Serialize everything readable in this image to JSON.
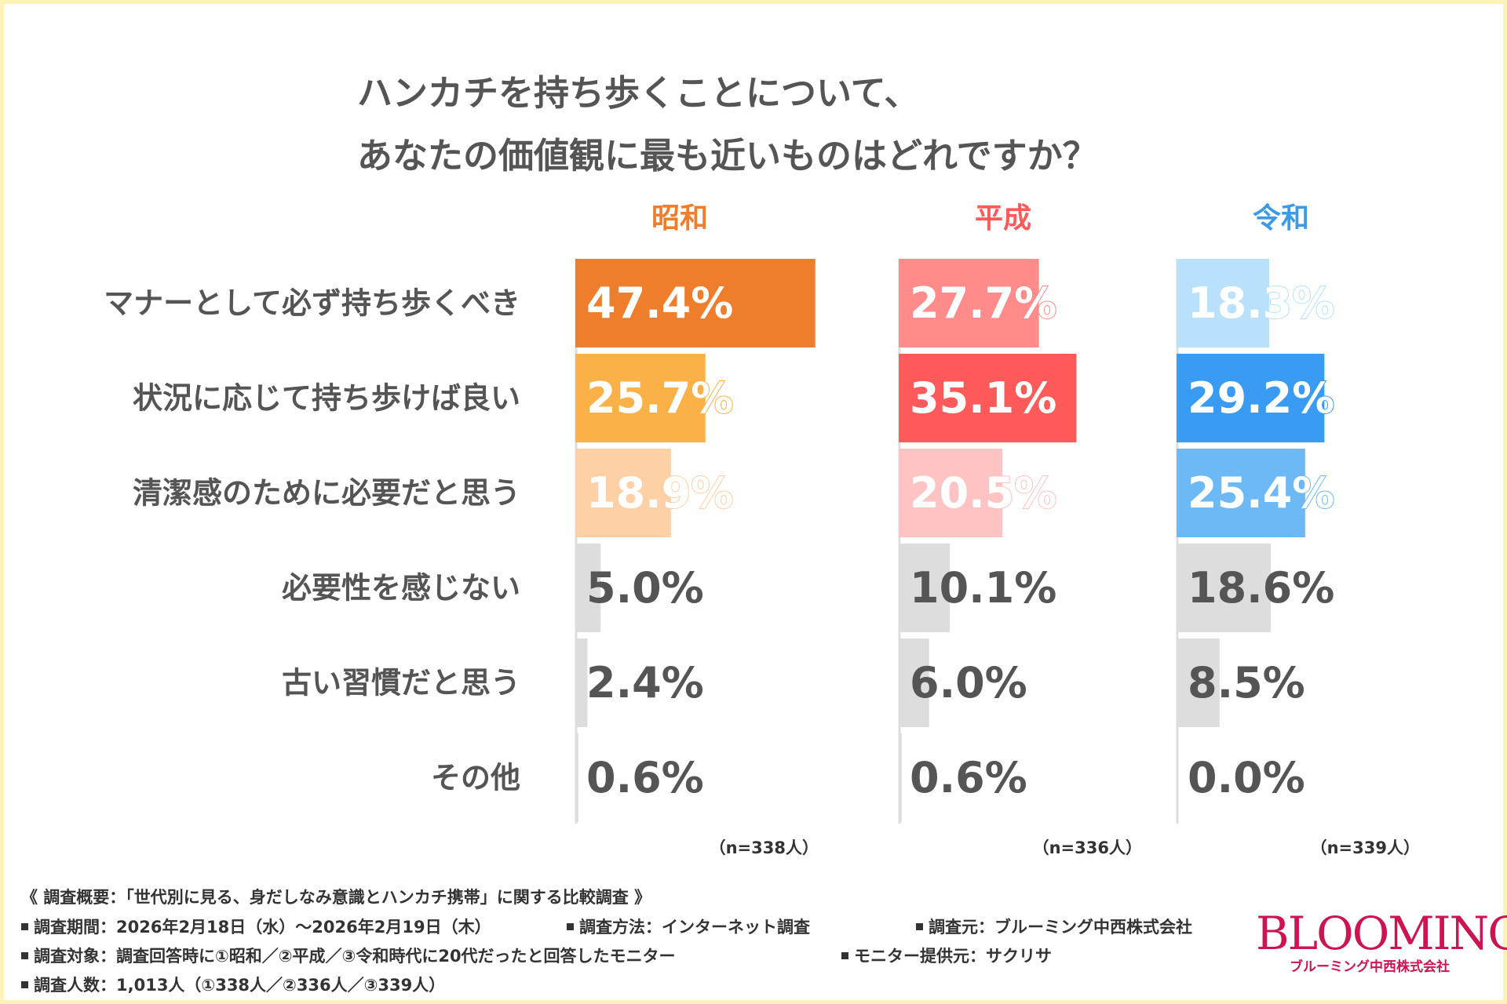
{
  "title": {
    "line1": "ハンカチを持ち歩くことについて、",
    "line2": "あなたの価値観に最も近いものはどれですか？"
  },
  "chart_data": {
    "type": "bar",
    "orientation": "horizontal",
    "categories": [
      "マナーとして必ず持ち歩くべき",
      "状況に応じて持ち歩けば良い",
      "清潔感のために必要だと思う",
      "必要性を感じない",
      "古い習慣だと思う",
      "その他"
    ],
    "series": [
      {
        "name": "昭和",
        "n_label": "（n=338人）",
        "values": [
          47.4,
          25.7,
          18.9,
          5.0,
          2.4,
          0.6
        ],
        "labels": [
          "47.4%",
          "25.7%",
          "18.9%",
          "5.0%",
          "2.4%",
          "0.6%"
        ],
        "colors": [
          "#ee7d2c",
          "#fbb147",
          "#fdd0a6",
          "#dddddd",
          "#dddddd",
          "#dddddd"
        ],
        "header_color": "#ee7d2c"
      },
      {
        "name": "平成",
        "n_label": "（n=336人）",
        "values": [
          27.7,
          35.1,
          20.5,
          10.1,
          6.0,
          0.6
        ],
        "labels": [
          "27.7%",
          "35.1%",
          "20.5%",
          "10.1%",
          "6.0%",
          "0.6%"
        ],
        "colors": [
          "#ff8b8b",
          "#ff5a5a",
          "#ffc3c3",
          "#dddddd",
          "#dddddd",
          "#dddddd"
        ],
        "header_color": "#ff5a5a"
      },
      {
        "name": "令和",
        "n_label": "（n=339人）",
        "values": [
          18.3,
          29.2,
          25.4,
          18.6,
          8.5,
          0.0
        ],
        "labels": [
          "18.3%",
          "29.2%",
          "25.4%",
          "18.6%",
          "8.5%",
          "0.0%"
        ],
        "colors": [
          "#b9e1fb",
          "#399bf2",
          "#6db9f5",
          "#dddddd",
          "#dddddd",
          "#dddddd"
        ],
        "header_color": "#3d9ae6"
      }
    ],
    "label_color_dark": "#555555",
    "axis_color": "#dddddd"
  },
  "footer": {
    "summary": "《 調査概要：「世代別に見る、身だしなみ意識とハンカチ携帯」に関する比較調査 》",
    "period": "調査期間：2026年2月18日（水）〜2026年2月19日（木）",
    "method": "調査方法：インターネット調査",
    "source": "調査元：ブルーミング中西株式会社",
    "target": "調査対象：調査回答時に①昭和／②平成／③令和時代に20代だったと回答したモニター",
    "provider": "モニター提供元：サクリサ",
    "count": "調査人数：1,013人（①338人／②336人／③339人）"
  },
  "logo": {
    "main": "BLOOMING",
    "sub": "ブルーミング中西株式会社"
  }
}
